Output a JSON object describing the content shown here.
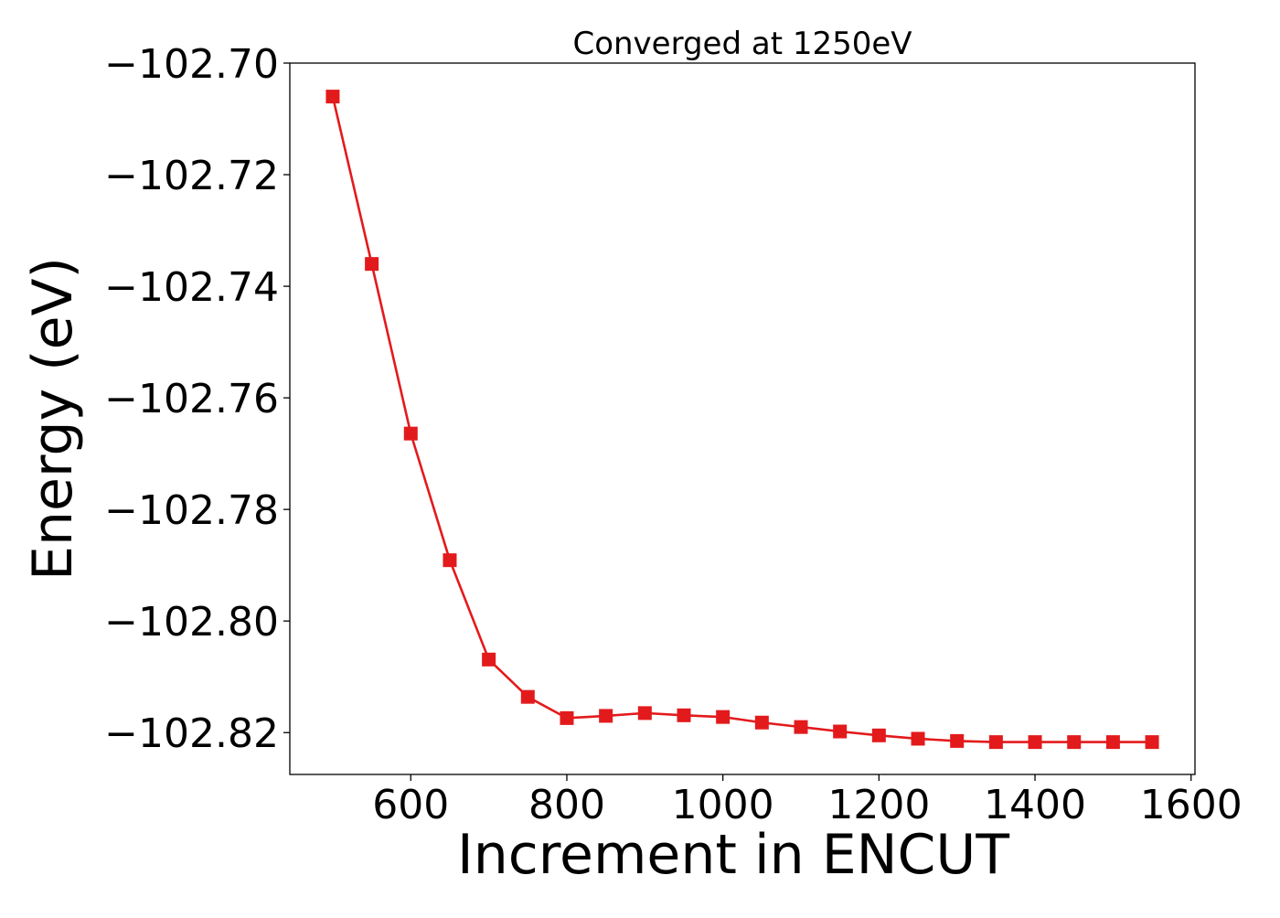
{
  "chart_data": {
    "type": "line",
    "title": "Converged at 1250eV",
    "xlabel": "Increment in ENCUT",
    "ylabel": "Energy (eV)",
    "xlim": [
      445,
      1605
    ],
    "ylim": [
      -102.8275,
      -102.7
    ],
    "xticks": [
      600,
      800,
      1000,
      1200,
      1400,
      1600
    ],
    "xtick_labels": [
      "600",
      "800",
      "1000",
      "1200",
      "1400",
      "1600"
    ],
    "yticks": [
      -102.7,
      -102.72,
      -102.74,
      -102.76,
      -102.78,
      -102.8,
      -102.82
    ],
    "ytick_labels": [
      "−102.70",
      "−102.72",
      "−102.74",
      "−102.76",
      "−102.78",
      "−102.80",
      "−102.82"
    ],
    "grid": false,
    "legend": "none",
    "series": [
      {
        "color": "#e31a1c",
        "marker": "square",
        "x": [
          500,
          550,
          600,
          650,
          700,
          750,
          800,
          850,
          900,
          950,
          1000,
          1050,
          1100,
          1150,
          1200,
          1250,
          1300,
          1350,
          1400,
          1450,
          1500,
          1550
        ],
        "y": [
          -102.706,
          -102.736,
          -102.7664,
          -102.7891,
          -102.8069,
          -102.8136,
          -102.8174,
          -102.817,
          -102.8165,
          -102.8169,
          -102.8172,
          -102.8182,
          -102.819,
          -102.8198,
          -102.8205,
          -102.8211,
          -102.8215,
          -102.8217,
          -102.8217,
          -102.8217,
          -102.8217,
          -102.8217
        ]
      }
    ]
  }
}
